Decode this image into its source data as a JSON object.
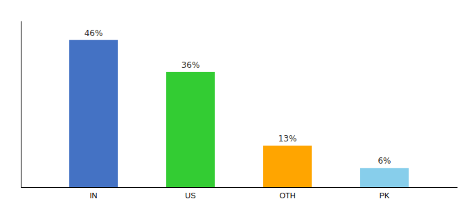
{
  "chart_data": {
    "type": "bar",
    "categories": [
      "IN",
      "US",
      "OTH",
      "PK"
    ],
    "values": [
      46,
      36,
      13,
      6
    ],
    "value_labels": [
      "46%",
      "36%",
      "13%",
      "6%"
    ],
    "colors": [
      "#4472C4",
      "#33CC33",
      "#FFA500",
      "#87CEEB"
    ],
    "data_labels": true,
    "ylim": [
      0,
      52
    ],
    "tick_labels": "x"
  }
}
